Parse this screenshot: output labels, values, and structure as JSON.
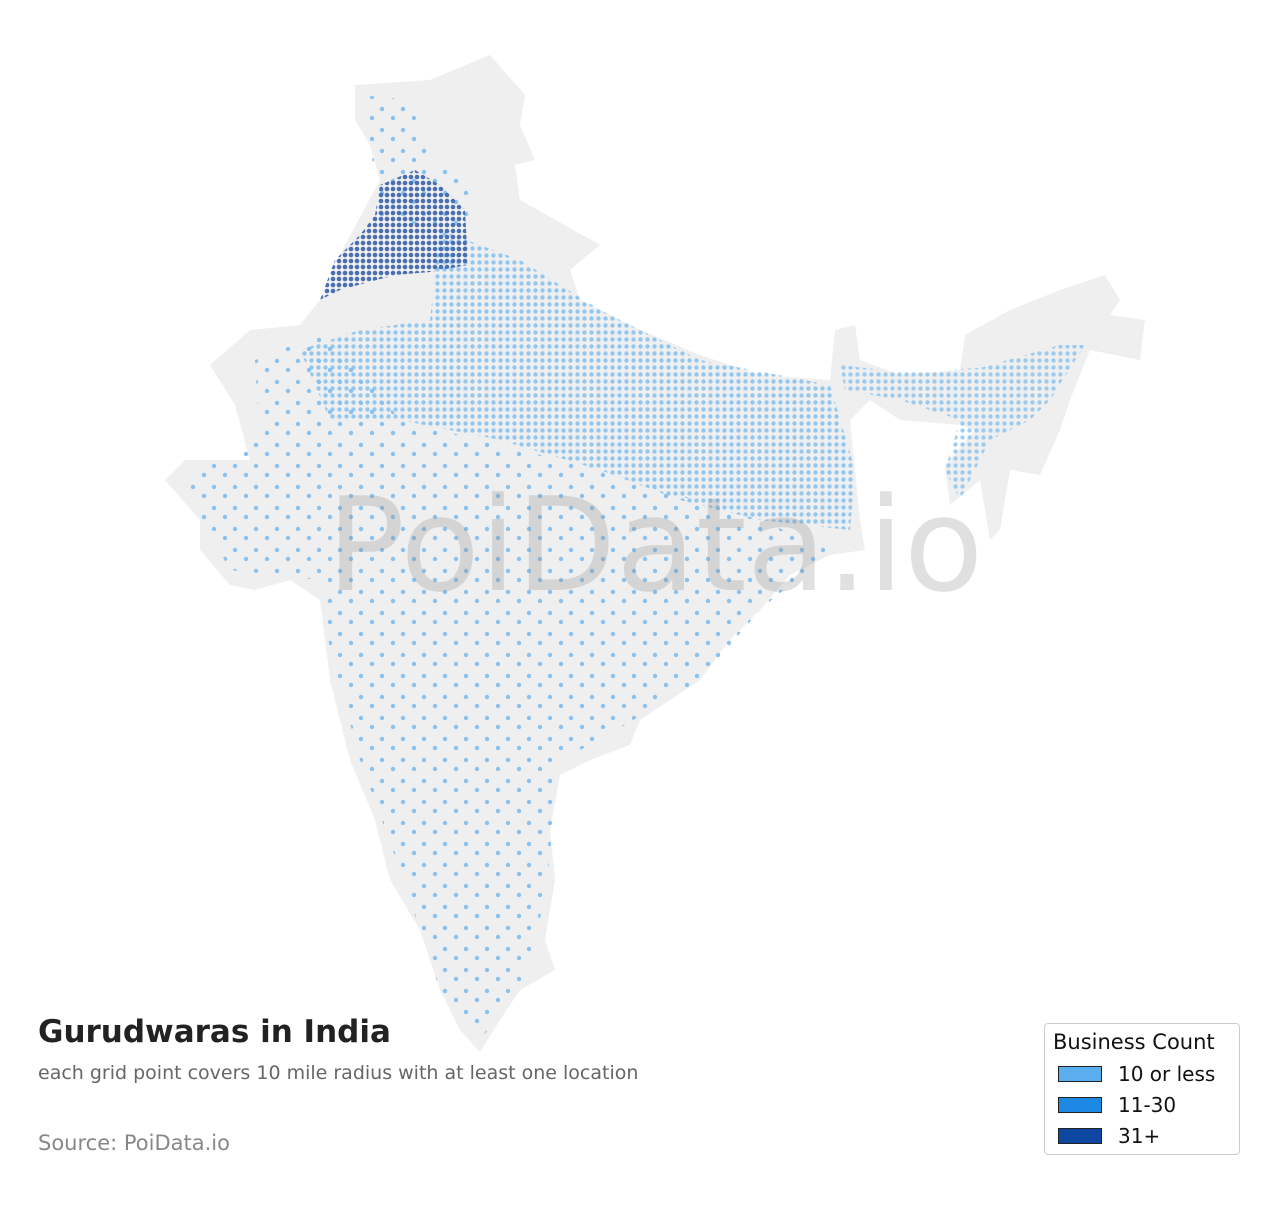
{
  "title": "Gurudwaras in India",
  "subtitle": "each grid point covers 10 mile radius with at least one location",
  "source": "Source: PoiData.io",
  "watermark": "PoiData.io",
  "legend": {
    "title": "Business Count",
    "items": [
      {
        "label": "10 or less",
        "color": "#5aaeee"
      },
      {
        "label": "11-30",
        "color": "#1e88e5"
      },
      {
        "label": "31+",
        "color": "#0d47a1"
      }
    ]
  }
}
